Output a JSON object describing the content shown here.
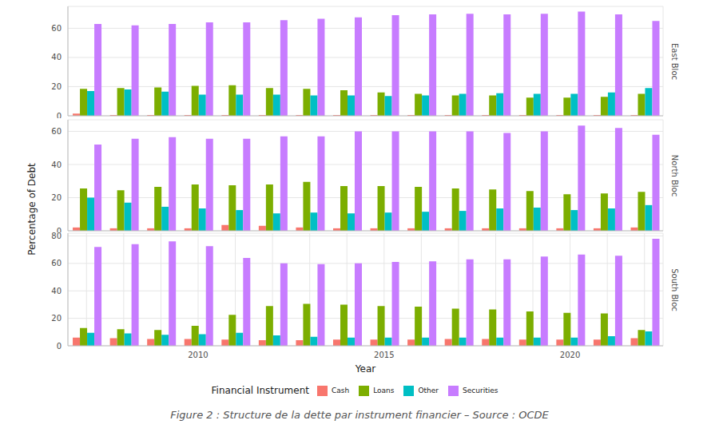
{
  "chart_data": [
    {
      "type": "bar",
      "title": "East Bloc",
      "categories": [
        null,
        null,
        null,
        "2010",
        null,
        null,
        null,
        null,
        "2015",
        null,
        null,
        null,
        null,
        "2020",
        null,
        null
      ],
      "series": [
        {
          "name": "Cash",
          "color": "#F8766D",
          "values": [
            1.5,
            0.5,
            0.5,
            0.5,
            0.5,
            0.5,
            0.5,
            0.5,
            0.5,
            0.5,
            0.5,
            0.5,
            0.5,
            0.5,
            0.5,
            0.5
          ]
        },
        {
          "name": "Loans",
          "color": "#7CAE00",
          "values": [
            18.5,
            19,
            19.5,
            20.5,
            21,
            19,
            18.5,
            17.5,
            16,
            15,
            14,
            14,
            12.5,
            12.5,
            13,
            15
          ]
        },
        {
          "name": "Other",
          "color": "#00BFC4",
          "values": [
            17,
            18,
            16.5,
            14.5,
            14.5,
            14.5,
            14,
            14,
            13.5,
            14,
            15,
            15.5,
            15,
            15,
            16,
            19
          ]
        },
        {
          "name": "Securities",
          "color": "#C77CFF",
          "values": [
            63,
            62,
            63,
            64,
            64,
            65.5,
            66.5,
            67.5,
            69,
            69.5,
            70,
            69.5,
            70,
            71.5,
            69.5,
            65
          ]
        }
      ],
      "ylim": [
        0,
        75
      ],
      "yticks": [
        0,
        20,
        40,
        60
      ],
      "grid": true,
      "tick_labels": "y"
    },
    {
      "type": "bar",
      "title": "North Bloc",
      "categories": [
        null,
        null,
        null,
        "2010",
        null,
        null,
        null,
        null,
        "2015",
        null,
        null,
        null,
        null,
        "2020",
        null,
        null
      ],
      "series": [
        {
          "name": "Cash",
          "color": "#F8766D",
          "values": [
            2,
            1.5,
            1.5,
            1.5,
            3.5,
            3,
            2,
            1.5,
            1.5,
            1.5,
            1.5,
            1.5,
            1.5,
            1.5,
            1.5,
            2
          ]
        },
        {
          "name": "Loans",
          "color": "#7CAE00",
          "values": [
            25.5,
            24.5,
            26.5,
            28,
            27.5,
            28,
            29.5,
            27,
            27,
            26.5,
            25.5,
            25,
            24,
            22,
            22.5,
            23.5
          ]
        },
        {
          "name": "Other",
          "color": "#00BFC4",
          "values": [
            20,
            17,
            14.5,
            13.5,
            12.5,
            10.5,
            11,
            10.5,
            11,
            11.5,
            12,
            13.5,
            14,
            12.5,
            13.5,
            15.5
          ]
        },
        {
          "name": "Securities",
          "color": "#C77CFF",
          "values": [
            52,
            55.5,
            56.5,
            55.5,
            55.5,
            57,
            57,
            60,
            60,
            60,
            60,
            59,
            60,
            63.5,
            62,
            58
          ]
        }
      ],
      "ylim": [
        0,
        67
      ],
      "yticks": [
        0,
        20,
        40,
        60
      ],
      "grid": true,
      "tick_labels": "y"
    },
    {
      "type": "bar",
      "title": "South Bloc",
      "categories": [
        null,
        null,
        null,
        "2010",
        null,
        null,
        null,
        null,
        "2015",
        null,
        null,
        null,
        null,
        "2020",
        null,
        null
      ],
      "series": [
        {
          "name": "Cash",
          "color": "#F8766D",
          "values": [
            6,
            5.5,
            5,
            5,
            4.5,
            4,
            4,
            4.5,
            4.5,
            4.5,
            5,
            5,
            4.5,
            4.5,
            4.5,
            5.5
          ]
        },
        {
          "name": "Loans",
          "color": "#7CAE00",
          "values": [
            13,
            12,
            11.5,
            14.5,
            22.5,
            29,
            30.5,
            30,
            29,
            28.5,
            27,
            26.5,
            25,
            24,
            23.5,
            11.5
          ]
        },
        {
          "name": "Other",
          "color": "#00BFC4",
          "values": [
            9.5,
            9,
            8,
            8.5,
            9.5,
            7.5,
            6.5,
            6,
            6,
            6,
            6,
            6,
            6,
            6,
            7,
            10.5
          ]
        },
        {
          "name": "Securities",
          "color": "#C77CFF",
          "values": [
            72,
            74,
            76,
            72.5,
            64,
            60,
            59.5,
            60,
            61,
            61.5,
            63,
            63,
            65,
            66.5,
            65.5,
            78
          ]
        }
      ],
      "ylim": [
        0,
        82
      ],
      "yticks": [
        0,
        20,
        40,
        60,
        80
      ],
      "grid": true,
      "legend": "bottom"
    }
  ],
  "x_label": "Year",
  "y_label": "Percentage of Debt",
  "legend_title": "Financial Instrument",
  "caption": "Figure 2 : Structure de la dette par instrument financier – Source : OCDE"
}
